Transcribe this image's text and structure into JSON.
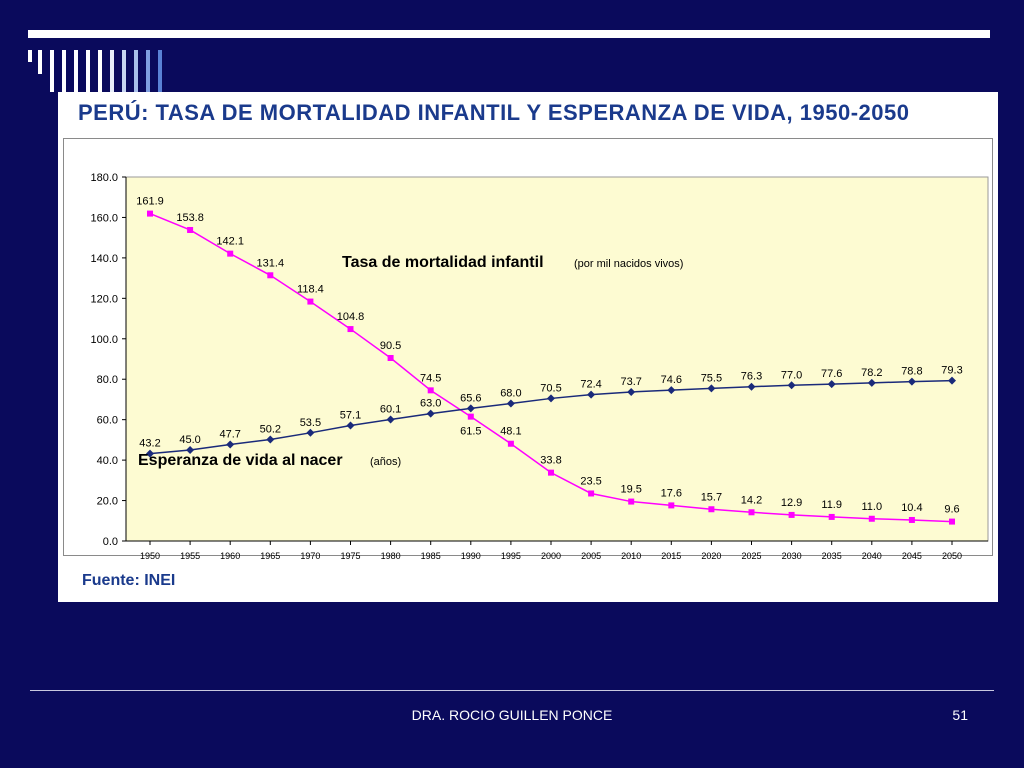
{
  "slide": {
    "title": "PERÚ: TASA DE MORTALIDAD INFANTIL Y ESPERANZA DE VIDA, 1950-2050",
    "source": "Fuente: INEI",
    "footer": "DRA. ROCIO GUILLEN PONCE",
    "page_number": "51"
  },
  "colors": {
    "background": "#0a0a5c",
    "plot_area": "#fdfbd2",
    "mortality_series": "#ff00ff",
    "life_expectancy_series": "#1a2a7a",
    "title": "#1a3a8c"
  },
  "chart_data": {
    "type": "line",
    "title": "PERÚ: TASA DE MORTALIDAD INFANTIL Y ESPERANZA DE VIDA, 1950-2050",
    "categories": [
      "1950",
      "1955",
      "1960",
      "1965",
      "1970",
      "1975",
      "1980",
      "1985",
      "1990",
      "1995",
      "2000",
      "2005",
      "2010",
      "2015",
      "2020",
      "2025",
      "2030",
      "2035",
      "2040",
      "2045",
      "2050"
    ],
    "ylim": [
      0,
      180
    ],
    "yticks": [
      "0.0",
      "20.0",
      "40.0",
      "60.0",
      "80.0",
      "100.0",
      "120.0",
      "140.0",
      "160.0",
      "180.0"
    ],
    "legend": "none",
    "grid": false,
    "series": [
      {
        "name": "Tasa de mortalidad infantil",
        "unit_note": "(por mil nacidos vivos)",
        "values": [
          161.9,
          153.8,
          142.1,
          131.4,
          118.4,
          104.8,
          90.5,
          74.5,
          61.5,
          48.1,
          33.8,
          23.5,
          19.5,
          17.6,
          15.7,
          14.2,
          12.9,
          11.9,
          11.0,
          10.4,
          9.6
        ],
        "labels": [
          "161.9",
          "153.8",
          "142.1",
          "131.4",
          "118.4",
          "104.8",
          "90.5",
          "74.5",
          "61.5",
          "48.1",
          "33.8",
          "23.5",
          "19.5",
          "17.6",
          "15.7",
          "14.2",
          "12.9",
          "11.9",
          "11.0",
          "10.4",
          "9.6"
        ]
      },
      {
        "name": "Esperanza de vida al nacer",
        "unit_note": "(años)",
        "values": [
          43.2,
          45.0,
          47.7,
          50.2,
          53.5,
          57.1,
          60.1,
          63.0,
          65.6,
          68.0,
          70.5,
          72.4,
          73.7,
          74.6,
          75.5,
          76.3,
          77.0,
          77.6,
          78.2,
          78.8,
          79.3
        ],
        "labels": [
          "43.2",
          "45.0",
          "47.7",
          "50.2",
          "53.5",
          "57.1",
          "60.1",
          "63.0",
          "65.6",
          "68.0",
          "70.5",
          "72.4",
          "73.7",
          "74.6",
          "75.5",
          "76.3",
          "77.0",
          "77.6",
          "78.2",
          "78.8",
          "79.3"
        ]
      }
    ]
  }
}
